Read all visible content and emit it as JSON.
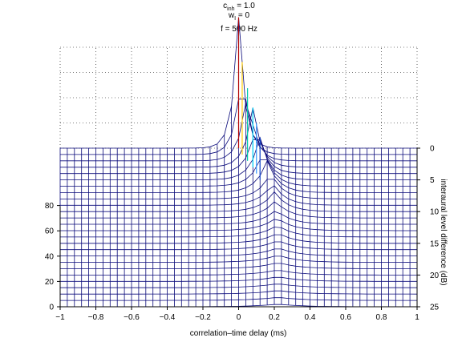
{
  "chart_data": {
    "type": "surface",
    "title": {
      "line1": {
        "var": "c",
        "sub": "inh",
        "rest": " = 1.0"
      },
      "line2": {
        "var": "w",
        "sub": "I",
        "rest": " = 0"
      },
      "line3": "f = 500 Hz"
    },
    "xlabel": "correlation–time delay (ms)",
    "ylabel": "interaural level difference (dB)",
    "zlabel": "",
    "xlim": [
      -1,
      1
    ],
    "ylim": [
      0,
      25
    ],
    "zlim": [
      0,
      100
    ],
    "xticks": [
      -1,
      -0.8,
      -0.6,
      -0.4,
      -0.2,
      0,
      0.2,
      0.4,
      0.6,
      0.8,
      1
    ],
    "xtick_labels": [
      "−1",
      "−0.8",
      "−0.6",
      "−0.4",
      "−0.2",
      "0",
      "0.2",
      "0.4",
      "0.6",
      "0.8",
      "1"
    ],
    "yticks": [
      0,
      5,
      10,
      15,
      20,
      25
    ],
    "ytick_labels": [
      "0",
      "5",
      "10",
      "15",
      "20",
      "25"
    ],
    "zticks": [
      0,
      20,
      40,
      60,
      80
    ],
    "ztick_labels": [
      "0",
      "20",
      "40",
      "60",
      "80"
    ],
    "grid": true,
    "peaks": [
      {
        "ild": 0,
        "delay": 0.0,
        "peak": 99
      },
      {
        "ild": 1,
        "delay": 0.02,
        "peak": 70
      },
      {
        "ild": 2,
        "delay": 0.05,
        "peak": 55
      },
      {
        "ild": 3,
        "delay": 0.08,
        "peak": 45
      },
      {
        "ild": 4,
        "delay": 0.1,
        "peak": 38
      },
      {
        "ild": 5,
        "delay": 0.12,
        "peak": 32
      },
      {
        "ild": 6,
        "delay": 0.14,
        "peak": 28
      },
      {
        "ild": 7,
        "delay": 0.16,
        "peak": 24
      },
      {
        "ild": 8,
        "delay": 0.18,
        "peak": 20
      },
      {
        "ild": 9,
        "delay": 0.19,
        "peak": 17
      },
      {
        "ild": 10,
        "delay": 0.2,
        "peak": 15
      },
      {
        "ild": 12,
        "delay": 0.21,
        "peak": 11
      },
      {
        "ild": 15,
        "delay": 0.22,
        "peak": 8
      },
      {
        "ild": 20,
        "delay": 0.22,
        "peak": 4
      },
      {
        "ild": 25,
        "delay": 0.22,
        "peak": 2
      }
    ],
    "colors": {
      "mesh": "#0a0a7a",
      "ridge_colors": [
        "#b00000",
        "#ffcc00",
        "#00ccaa",
        "#00e0ff",
        "#3399ff",
        "#1a4fd0"
      ],
      "axes": "#000000",
      "grid": "#000000"
    }
  }
}
